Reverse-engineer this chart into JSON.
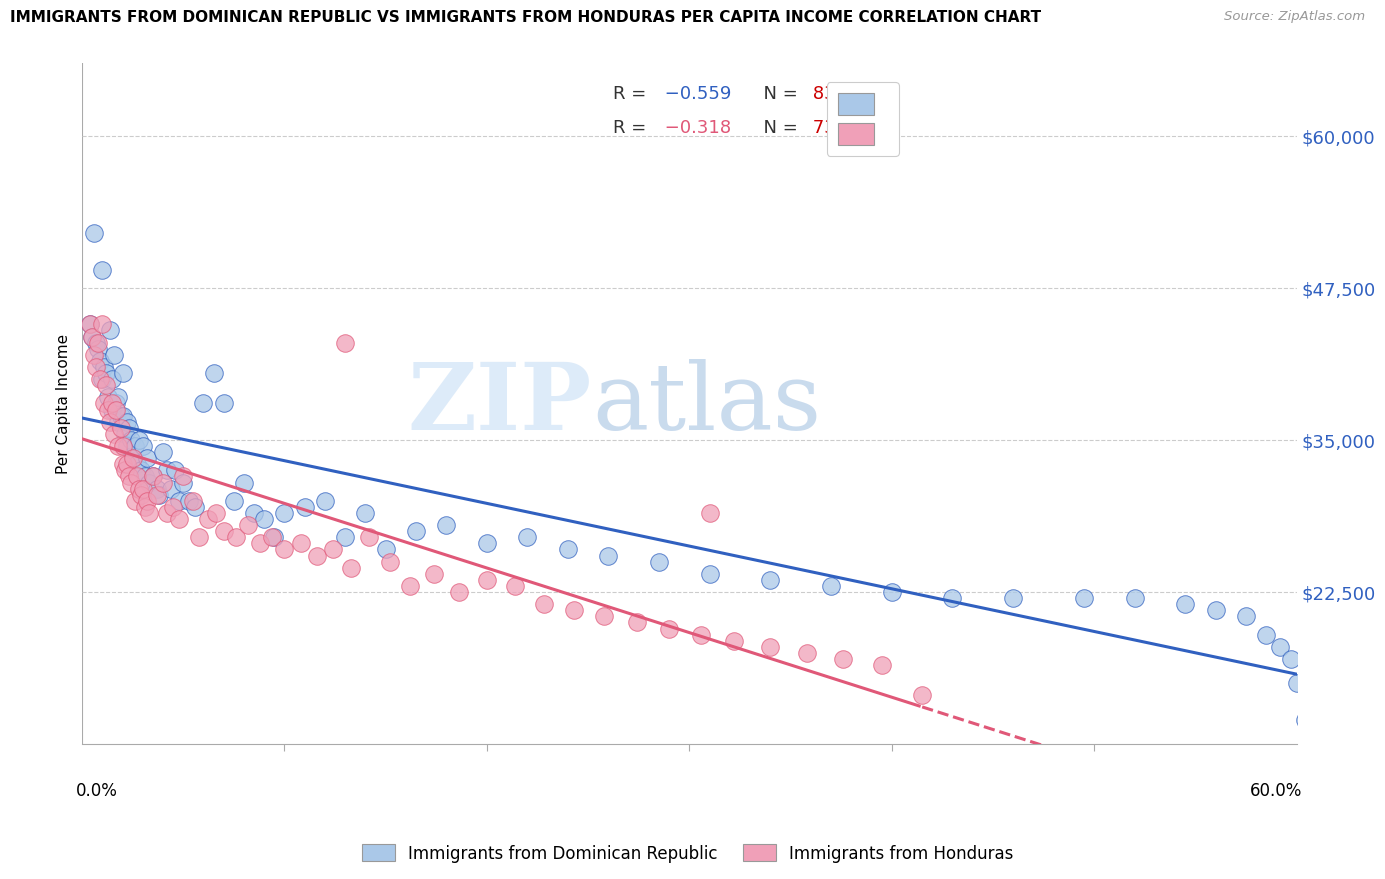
{
  "title": "IMMIGRANTS FROM DOMINICAN REPUBLIC VS IMMIGRANTS FROM HONDURAS PER CAPITA INCOME CORRELATION CHART",
  "source": "Source: ZipAtlas.com",
  "ylabel": "Per Capita Income",
  "xmin": 0.0,
  "xmax": 0.6,
  "ymin": 10000,
  "ymax": 66000,
  "color_blue": "#aac8e8",
  "color_pink": "#f0a0b8",
  "line_blue": "#3060c0",
  "line_pink": "#e05878",
  "r_color": "#3060c0",
  "n_color": "#cc0000",
  "r1": "-0.559",
  "n1": "83",
  "r2": "-0.318",
  "n2": "73",
  "ytick_vals": [
    22500,
    35000,
    47500,
    60000
  ],
  "ytick_labels": [
    "$22,500",
    "$35,000",
    "$47,500",
    "$60,000"
  ],
  "blue_x": [
    0.004,
    0.005,
    0.006,
    0.007,
    0.008,
    0.009,
    0.01,
    0.01,
    0.011,
    0.012,
    0.013,
    0.014,
    0.015,
    0.015,
    0.016,
    0.017,
    0.018,
    0.018,
    0.019,
    0.02,
    0.02,
    0.021,
    0.022,
    0.022,
    0.023,
    0.024,
    0.025,
    0.026,
    0.027,
    0.028,
    0.029,
    0.03,
    0.031,
    0.032,
    0.033,
    0.035,
    0.037,
    0.038,
    0.04,
    0.042,
    0.044,
    0.046,
    0.048,
    0.05,
    0.053,
    0.056,
    0.06,
    0.065,
    0.07,
    0.075,
    0.08,
    0.085,
    0.09,
    0.095,
    0.1,
    0.11,
    0.12,
    0.13,
    0.14,
    0.15,
    0.165,
    0.18,
    0.2,
    0.22,
    0.24,
    0.26,
    0.285,
    0.31,
    0.34,
    0.37,
    0.4,
    0.43,
    0.46,
    0.495,
    0.52,
    0.545,
    0.56,
    0.575,
    0.585,
    0.592,
    0.597,
    0.6,
    0.604
  ],
  "blue_y": [
    44500,
    43500,
    52000,
    43000,
    42500,
    41500,
    49000,
    40000,
    41000,
    40500,
    38500,
    44000,
    40000,
    37500,
    42000,
    38000,
    36500,
    38500,
    37000,
    40500,
    37000,
    35500,
    36500,
    34500,
    36000,
    35000,
    33500,
    34500,
    33000,
    35000,
    32500,
    34500,
    32000,
    33500,
    31500,
    32000,
    31000,
    30500,
    34000,
    32500,
    31000,
    32500,
    30000,
    31500,
    30000,
    29500,
    38000,
    40500,
    38000,
    30000,
    31500,
    29000,
    28500,
    27000,
    29000,
    29500,
    30000,
    27000,
    29000,
    26000,
    27500,
    28000,
    26500,
    27000,
    26000,
    25500,
    25000,
    24000,
    23500,
    23000,
    22500,
    22000,
    22000,
    22000,
    22000,
    21500,
    21000,
    20500,
    19000,
    18000,
    17000,
    15000,
    12000
  ],
  "pink_x": [
    0.004,
    0.005,
    0.006,
    0.007,
    0.008,
    0.009,
    0.01,
    0.011,
    0.012,
    0.013,
    0.014,
    0.015,
    0.016,
    0.017,
    0.018,
    0.019,
    0.02,
    0.02,
    0.021,
    0.022,
    0.023,
    0.024,
    0.025,
    0.026,
    0.027,
    0.028,
    0.029,
    0.03,
    0.031,
    0.032,
    0.033,
    0.035,
    0.037,
    0.04,
    0.042,
    0.045,
    0.048,
    0.05,
    0.055,
    0.058,
    0.062,
    0.066,
    0.07,
    0.076,
    0.082,
    0.088,
    0.094,
    0.1,
    0.108,
    0.116,
    0.124,
    0.133,
    0.142,
    0.152,
    0.162,
    0.174,
    0.186,
    0.2,
    0.214,
    0.228,
    0.243,
    0.258,
    0.274,
    0.29,
    0.306,
    0.322,
    0.34,
    0.358,
    0.376,
    0.395,
    0.13,
    0.31,
    0.415
  ],
  "pink_y": [
    44500,
    43500,
    42000,
    41000,
    43000,
    40000,
    44500,
    38000,
    39500,
    37500,
    36500,
    38000,
    35500,
    37500,
    34500,
    36000,
    33000,
    34500,
    32500,
    33000,
    32000,
    31500,
    33500,
    30000,
    32000,
    31000,
    30500,
    31000,
    29500,
    30000,
    29000,
    32000,
    30500,
    31500,
    29000,
    29500,
    28500,
    32000,
    30000,
    27000,
    28500,
    29000,
    27500,
    27000,
    28000,
    26500,
    27000,
    26000,
    26500,
    25500,
    26000,
    24500,
    27000,
    25000,
    23000,
    24000,
    22500,
    23500,
    23000,
    21500,
    21000,
    20500,
    20000,
    19500,
    19000,
    18500,
    18000,
    17500,
    17000,
    16500,
    43000,
    29000,
    14000
  ]
}
